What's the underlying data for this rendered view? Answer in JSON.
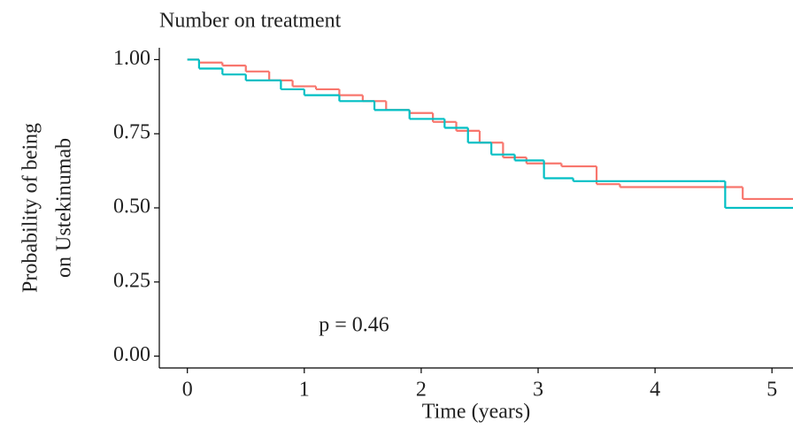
{
  "chart_data": {
    "type": "step",
    "title": "Number on treatment",
    "ylabel": [
      "Probability of being",
      "on Ustekinumab"
    ],
    "xlabel": "Time (years)",
    "annotation": "p = 0.46",
    "xlim": [
      -0.24,
      5.18
    ],
    "xticks": [
      0,
      1,
      2,
      3,
      4,
      5
    ],
    "ylim": [
      -0.04,
      1.04
    ],
    "yticks": [
      {
        "value": 0,
        "label": "0.00"
      },
      {
        "value": 0.25,
        "label": "0.25"
      },
      {
        "value": 0.5,
        "label": "0.50"
      },
      {
        "value": 0.75,
        "label": "0.75"
      },
      {
        "value": 1,
        "label": "1.00"
      }
    ],
    "series": [
      {
        "color": "#F8766D",
        "x": [
          0,
          0.1,
          0.3,
          0.5,
          0.7,
          0.9,
          1.1,
          1.3,
          1.5,
          1.7,
          1.9,
          2.1,
          2.3,
          2.5,
          2.7,
          2.9,
          3.2,
          3.5,
          3.7,
          4.6,
          4.75,
          5.18
        ],
        "values": [
          1.0,
          0.99,
          0.98,
          0.96,
          0.93,
          0.91,
          0.9,
          0.88,
          0.86,
          0.83,
          0.82,
          0.79,
          0.76,
          0.72,
          0.67,
          0.65,
          0.64,
          0.58,
          0.57,
          0.57,
          0.53,
          0.53
        ]
      },
      {
        "color": "#00BFC4",
        "x": [
          0,
          0.1,
          0.3,
          0.5,
          0.8,
          1.0,
          1.3,
          1.6,
          1.9,
          2.2,
          2.4,
          2.6,
          2.8,
          3.05,
          3.3,
          4.55,
          4.6,
          5.18
        ],
        "values": [
          1.0,
          0.97,
          0.95,
          0.93,
          0.9,
          0.88,
          0.86,
          0.83,
          0.8,
          0.77,
          0.72,
          0.68,
          0.66,
          0.6,
          0.59,
          0.59,
          0.5,
          0.5
        ]
      }
    ]
  }
}
